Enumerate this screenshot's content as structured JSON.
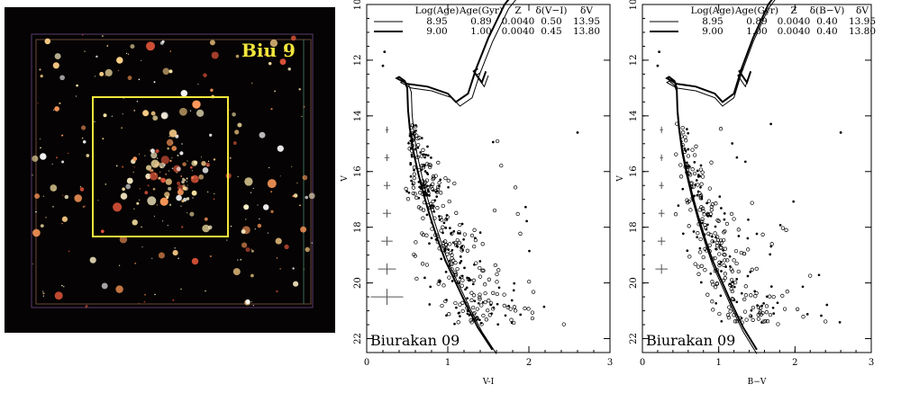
{
  "image_panel": {
    "cluster_label": "Biu 9",
    "colors": {
      "background": "#050303",
      "box": "#f3e73c",
      "label": "#f3e73c"
    }
  },
  "chart_data": [
    {
      "type": "scatter",
      "title": "",
      "xlabel": "V-I",
      "ylabel": "V",
      "xlim": [
        0,
        3
      ],
      "ylim": [
        22.5,
        10
      ],
      "y_inverted": true,
      "xticks": [
        "0",
        "1",
        "2",
        "3"
      ],
      "yticks": [
        "10",
        "12",
        "14",
        "16",
        "18",
        "20",
        "22"
      ],
      "annotation": "Biurakan 09",
      "legend": {
        "placement": "top",
        "headers": [
          "Log(Age)",
          "Age(Gyr)",
          "Z",
          "δ(V−I)",
          "δV"
        ],
        "rows": [
          {
            "cells": [
              "8.95",
              "0.89",
              "0.0040",
              "0.50",
              "13.95"
            ],
            "line": "thin"
          },
          {
            "cells": [
              "9.00",
              "1.00",
              "0.0040",
              "0.45",
              "13.80"
            ],
            "line": "thick"
          }
        ]
      },
      "error_bars": [
        {
          "y": 14.5,
          "dx": 0.02
        },
        {
          "y": 15.5,
          "dx": 0.03
        },
        {
          "y": 16.5,
          "dx": 0.04
        },
        {
          "y": 17.5,
          "dx": 0.05
        },
        {
          "y": 18.5,
          "dx": 0.07
        },
        {
          "y": 19.5,
          "dx": 0.11
        },
        {
          "y": 20.5,
          "dx": 0.2
        }
      ],
      "series": [
        {
          "line": "thin",
          "offset_x": 0.5,
          "offset_y": 13.95
        },
        {
          "line": "thick",
          "offset_x": 0.45,
          "offset_y": 13.8
        }
      ],
      "observed_stars": {
        "note": "open circles and dots along main sequence",
        "count_approx": 380
      }
    },
    {
      "type": "scatter",
      "title": "",
      "xlabel": "B−V",
      "ylabel": "V",
      "xlim": [
        0,
        3
      ],
      "ylim": [
        22.5,
        10
      ],
      "y_inverted": true,
      "xticks": [
        "0",
        "1",
        "2",
        "3"
      ],
      "yticks": [
        "10",
        "12",
        "14",
        "16",
        "18",
        "20",
        "22"
      ],
      "annotation": "Biurakan 09",
      "legend": {
        "placement": "top",
        "headers": [
          "Log(Age)",
          "Age(Gyr)",
          "Z",
          "δ(B−V)",
          "δV"
        ],
        "rows": [
          {
            "cells": [
              "8.95",
              "0.89",
              "0.0040",
              "0.40",
              "13.95"
            ],
            "line": "thin"
          },
          {
            "cells": [
              "9.00",
              "1.00",
              "0.0040",
              "0.40",
              "13.80"
            ],
            "line": "thick"
          }
        ]
      },
      "error_bars": [
        {
          "y": 14.5,
          "dx": 0.02
        },
        {
          "y": 15.5,
          "dx": 0.02
        },
        {
          "y": 16.5,
          "dx": 0.03
        },
        {
          "y": 17.5,
          "dx": 0.04
        },
        {
          "y": 18.5,
          "dx": 0.05
        },
        {
          "y": 19.5,
          "dx": 0.08
        }
      ],
      "series": [
        {
          "line": "thin",
          "offset_x": 0.4,
          "offset_y": 13.95
        },
        {
          "line": "thick",
          "offset_x": 0.4,
          "offset_y": 13.8
        }
      ],
      "observed_stars": {
        "note": "open circles and dots along main sequence",
        "count_approx": 300
      }
    }
  ]
}
